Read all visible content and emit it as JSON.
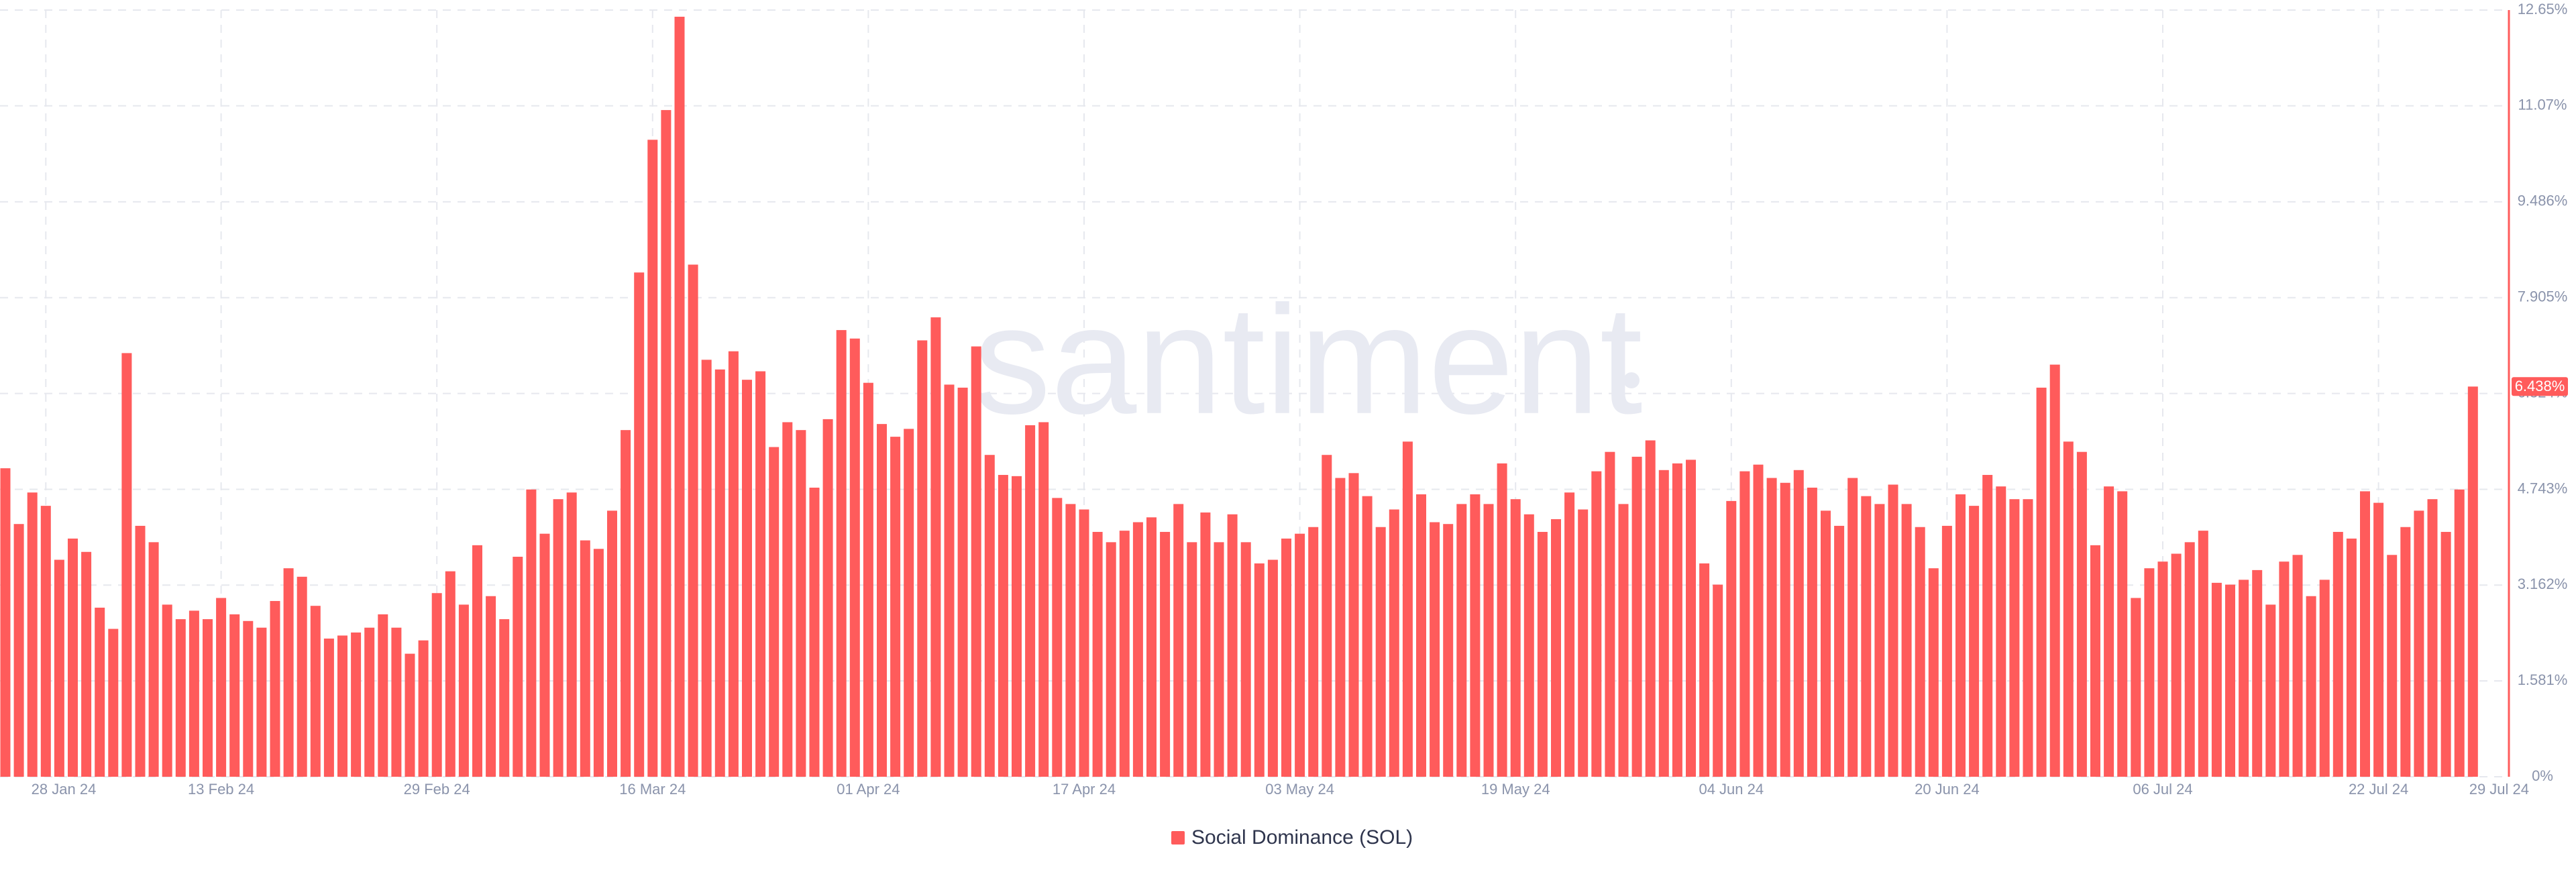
{
  "chart_data": {
    "type": "bar",
    "watermark": "santiment",
    "series": [
      {
        "name": "Social Dominance (SOL)",
        "color": "#ff5b5b",
        "values": [
          5.09,
          4.17,
          4.69,
          4.47,
          3.58,
          3.93,
          3.71,
          2.79,
          2.44,
          6.99,
          4.14,
          3.87,
          2.84,
          2.6,
          2.74,
          2.6,
          2.95,
          2.68,
          2.57,
          2.46,
          2.9,
          3.44,
          3.3,
          2.82,
          2.28,
          2.33,
          2.38,
          2.46,
          2.68,
          2.46,
          2.03,
          2.25,
          3.03,
          3.39,
          2.84,
          3.82,
          2.98,
          2.6,
          3.63,
          4.74,
          4.01,
          4.58,
          4.69,
          3.9,
          3.76,
          4.39,
          5.72,
          8.32,
          10.51,
          11.0,
          12.54,
          8.45,
          6.88,
          6.72,
          7.02,
          6.55,
          6.69,
          5.44,
          5.85,
          5.72,
          4.77,
          5.9,
          7.37,
          7.23,
          6.5,
          5.82,
          5.61,
          5.74,
          7.2,
          7.58,
          6.47,
          6.42,
          7.1,
          5.31,
          4.98,
          4.96,
          5.8,
          5.85,
          4.6,
          4.5,
          4.41,
          4.04,
          3.87,
          4.06,
          4.2,
          4.28,
          4.04,
          4.5,
          3.87,
          4.36,
          3.87,
          4.33,
          3.87,
          3.52,
          3.58,
          3.93,
          4.01,
          4.12,
          5.31,
          4.93,
          5.01,
          4.63,
          4.12,
          4.41,
          5.53,
          4.66,
          4.2,
          4.17,
          4.5,
          4.66,
          4.5,
          5.17,
          4.58,
          4.33,
          4.04,
          4.25,
          4.69,
          4.41,
          5.04,
          5.36,
          4.5,
          5.28,
          5.55,
          5.06,
          5.17,
          5.23,
          3.52,
          3.17,
          4.55,
          5.04,
          5.15,
          4.93,
          4.85,
          5.06,
          4.77,
          4.39,
          4.14,
          4.93,
          4.63,
          4.5,
          4.82,
          4.5,
          4.12,
          3.44,
          4.14,
          4.66,
          4.47,
          4.98,
          4.79,
          4.58,
          4.58,
          6.42,
          6.8,
          5.53,
          5.36,
          3.82,
          4.79,
          4.71,
          2.95,
          3.44,
          3.55,
          3.68,
          3.87,
          4.06,
          3.2,
          3.17,
          3.25,
          3.41,
          2.84,
          3.55,
          3.66,
          2.98,
          3.25,
          4.04,
          3.93,
          4.71,
          4.52,
          3.66,
          4.12,
          4.39,
          4.58,
          4.04,
          4.74,
          6.438
        ],
        "value_labels": [
          null,
          null,
          null,
          null,
          null,
          null,
          null,
          null,
          null,
          null,
          null,
          null,
          null,
          null,
          null,
          null,
          null,
          null,
          null,
          null,
          null,
          null,
          null,
          null,
          null,
          null,
          null,
          null,
          null,
          null,
          null,
          null,
          null,
          null,
          null,
          null,
          null,
          null,
          null,
          null,
          null,
          null,
          null,
          null,
          null,
          null,
          null,
          null,
          null,
          null,
          null,
          null,
          null,
          null,
          null,
          null,
          null,
          null,
          null,
          null,
          null,
          null,
          null,
          null,
          null,
          null,
          null,
          null,
          null,
          null,
          null,
          null,
          null,
          null,
          null,
          null,
          null,
          null,
          null,
          null,
          null,
          null,
          null,
          null,
          null,
          null,
          null,
          null,
          null,
          null,
          null,
          null,
          null,
          null,
          null,
          null,
          null,
          null,
          null,
          null,
          null,
          null,
          null,
          null,
          null,
          null,
          null,
          null,
          null,
          null,
          null,
          null,
          null,
          null,
          null,
          null,
          null,
          null,
          null,
          null,
          null,
          null,
          null,
          null,
          null,
          null,
          null,
          null,
          null,
          null,
          null,
          null,
          null,
          null,
          null,
          null,
          null,
          null,
          null,
          null,
          null,
          null,
          null,
          null,
          null,
          null,
          null,
          null,
          null,
          null,
          null,
          null,
          null,
          null,
          null,
          null,
          null,
          null,
          null,
          null,
          null,
          null,
          null,
          null,
          null,
          null,
          null,
          null,
          null,
          null,
          null,
          null,
          null,
          null,
          null,
          null,
          null,
          null,
          null,
          null,
          null,
          null,
          null,
          "6.438%"
        ]
      }
    ],
    "categories": [
      null,
      null,
      null,
      "28 Jan 24",
      null,
      null,
      null,
      null,
      null,
      null,
      null,
      null,
      null,
      null,
      null,
      null,
      "13 Feb 24",
      null,
      null,
      null,
      null,
      null,
      null,
      null,
      null,
      null,
      null,
      null,
      null,
      null,
      null,
      null,
      "29 Feb 24",
      null,
      null,
      null,
      null,
      null,
      null,
      null,
      null,
      null,
      null,
      null,
      null,
      null,
      null,
      null,
      "16 Mar 24",
      null,
      null,
      null,
      null,
      null,
      null,
      null,
      null,
      null,
      null,
      null,
      null,
      null,
      null,
      null,
      "01 Apr 24",
      null,
      null,
      null,
      null,
      null,
      null,
      null,
      null,
      null,
      null,
      null,
      null,
      null,
      null,
      null,
      "17 Apr 24",
      null,
      null,
      null,
      null,
      null,
      null,
      null,
      null,
      null,
      null,
      null,
      null,
      null,
      null,
      null,
      "03 May 24",
      null,
      null,
      null,
      null,
      null,
      null,
      null,
      null,
      null,
      null,
      null,
      null,
      null,
      null,
      null,
      "19 May 24",
      null,
      null,
      null,
      null,
      null,
      null,
      null,
      null,
      null,
      null,
      null,
      null,
      null,
      null,
      null,
      "04 Jun 24",
      null,
      null,
      null,
      null,
      null,
      null,
      null,
      null,
      null,
      null,
      null,
      null,
      null,
      null,
      null,
      "20 Jun 24",
      null,
      null,
      null,
      null,
      null,
      null,
      null,
      null,
      null,
      null,
      null,
      null,
      null,
      null,
      null,
      "06 Jul 24",
      null,
      null,
      null,
      null,
      null,
      null,
      null,
      null,
      null,
      null,
      null,
      null,
      null,
      null,
      null,
      "22 Jul 24",
      null,
      null,
      null,
      null,
      null,
      null,
      "29 Jul 24"
    ],
    "ylim": [
      0,
      12.65
    ],
    "yticks": [
      {
        "value": 0,
        "label": "0%"
      },
      {
        "value": 1.581,
        "label": "1.581%"
      },
      {
        "value": 3.162,
        "label": "3.162%"
      },
      {
        "value": 4.743,
        "label": "4.743%"
      },
      {
        "value": 6.324,
        "label": "6.324%"
      },
      {
        "value": 7.905,
        "label": "7.905%"
      },
      {
        "value": 9.486,
        "label": "9.486%"
      },
      {
        "value": 11.07,
        "label": "11.07%"
      },
      {
        "value": 12.65,
        "label": "12.65%"
      }
    ],
    "grid": true,
    "legend": "bottom"
  }
}
